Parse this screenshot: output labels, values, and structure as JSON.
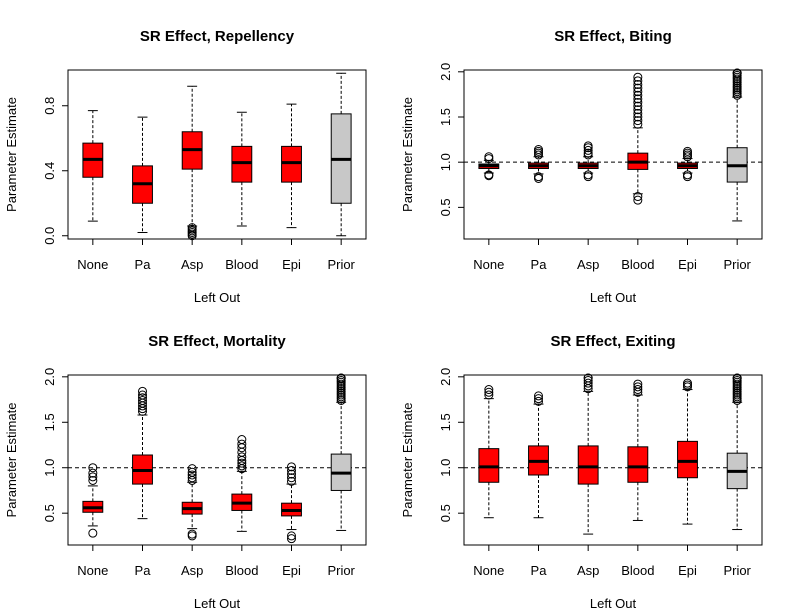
{
  "chart_data": [
    {
      "type": "boxplot",
      "title": "SR Effect, Repellency",
      "xlabel": "Left Out",
      "ylabel": "Parameter Estimate",
      "categories": [
        "None",
        "Pa",
        "Asp",
        "Blood",
        "Epi",
        "Prior"
      ],
      "yticks": [
        "0.0",
        "0.4",
        "0.8"
      ],
      "ylim": [
        -0.02,
        1.02
      ],
      "reference_line": null,
      "boxes": [
        {
          "min": 0.09,
          "q1": 0.36,
          "median": 0.47,
          "q3": 0.57,
          "max": 0.77,
          "outliers": [],
          "color": "#ff0000"
        },
        {
          "min": 0.02,
          "q1": 0.2,
          "median": 0.32,
          "q3": 0.43,
          "max": 0.73,
          "outliers": [],
          "color": "#ff0000"
        },
        {
          "min": 0.06,
          "q1": 0.41,
          "median": 0.53,
          "q3": 0.64,
          "max": 0.92,
          "outliers": [
            0.0,
            0.01,
            0.02,
            0.03,
            0.04,
            0.05
          ],
          "color": "#ff0000"
        },
        {
          "min": 0.06,
          "q1": 0.33,
          "median": 0.45,
          "q3": 0.55,
          "max": 0.76,
          "outliers": [],
          "color": "#ff0000"
        },
        {
          "min": 0.05,
          "q1": 0.33,
          "median": 0.45,
          "q3": 0.55,
          "max": 0.81,
          "outliers": [],
          "color": "#ff0000"
        },
        {
          "min": 0.0,
          "q1": 0.2,
          "median": 0.47,
          "q3": 0.75,
          "max": 1.0,
          "outliers": [],
          "color": "#c8c8c8"
        }
      ]
    },
    {
      "type": "boxplot",
      "title": "SR Effect, Biting",
      "xlabel": "Left Out",
      "ylabel": "Parameter Estimate",
      "categories": [
        "None",
        "Pa",
        "Asp",
        "Blood",
        "Epi",
        "Prior"
      ],
      "yticks": [
        "0.5",
        "1.0",
        "1.5",
        "2.0"
      ],
      "ylim": [
        0.15,
        2.02
      ],
      "reference_line": 1.0,
      "boxes": [
        {
          "min": 0.88,
          "q1": 0.93,
          "median": 0.96,
          "q3": 0.98,
          "max": 1.02,
          "outliers": [
            0.85,
            0.86,
            1.04,
            1.06
          ],
          "color": "#ff0000"
        },
        {
          "min": 0.87,
          "q1": 0.93,
          "median": 0.96,
          "q3": 0.99,
          "max": 1.06,
          "outliers": [
            0.82,
            0.84,
            1.08,
            1.1,
            1.12,
            1.14
          ],
          "color": "#ff0000"
        },
        {
          "min": 0.88,
          "q1": 0.93,
          "median": 0.96,
          "q3": 0.99,
          "max": 1.06,
          "outliers": [
            0.84,
            0.86,
            1.08,
            1.1,
            1.13,
            1.16,
            1.18
          ],
          "color": "#ff0000"
        },
        {
          "min": 0.65,
          "q1": 0.92,
          "median": 1.0,
          "q3": 1.1,
          "max": 1.38,
          "outliers": [
            0.58,
            0.62,
            1.42,
            1.46,
            1.5,
            1.54,
            1.58,
            1.62,
            1.66,
            1.7,
            1.74,
            1.78,
            1.82,
            1.86,
            1.9,
            1.94
          ],
          "color": "#ff0000"
        },
        {
          "min": 0.88,
          "q1": 0.93,
          "median": 0.96,
          "q3": 0.99,
          "max": 1.04,
          "outliers": [
            0.84,
            0.86,
            1.06,
            1.08,
            1.1,
            1.12
          ],
          "color": "#ff0000"
        },
        {
          "min": 0.35,
          "q1": 0.78,
          "median": 0.96,
          "q3": 1.16,
          "max": 1.72,
          "outliers": [
            1.74,
            1.76,
            1.78,
            1.8,
            1.82,
            1.84,
            1.86,
            1.88,
            1.9,
            1.92,
            1.94,
            1.96,
            1.98,
            2.0,
            2.02
          ],
          "color": "#c8c8c8"
        }
      ]
    },
    {
      "type": "boxplot",
      "title": "SR Effect, Mortality",
      "xlabel": "Left Out",
      "ylabel": "Parameter Estimate",
      "categories": [
        "None",
        "Pa",
        "Asp",
        "Blood",
        "Epi",
        "Prior"
      ],
      "yticks": [
        "0.5",
        "1.0",
        "1.5",
        "2.0"
      ],
      "ylim": [
        0.15,
        2.02
      ],
      "reference_line": 1.0,
      "boxes": [
        {
          "min": 0.36,
          "q1": 0.51,
          "median": 0.56,
          "q3": 0.63,
          "max": 0.8,
          "outliers": [
            0.28,
            0.86,
            0.9,
            0.94,
            1.0
          ],
          "color": "#ff0000"
        },
        {
          "min": 0.44,
          "q1": 0.82,
          "median": 0.97,
          "q3": 1.14,
          "max": 1.58,
          "outliers": [
            1.62,
            1.65,
            1.68,
            1.71,
            1.74,
            1.77,
            1.8,
            1.84
          ],
          "color": "#ff0000"
        },
        {
          "min": 0.33,
          "q1": 0.49,
          "median": 0.55,
          "q3": 0.62,
          "max": 0.84,
          "outliers": [
            0.25,
            0.27,
            0.86,
            0.89,
            0.92,
            0.95,
            0.99
          ],
          "color": "#ff0000"
        },
        {
          "min": 0.3,
          "q1": 0.53,
          "median": 0.61,
          "q3": 0.71,
          "max": 0.96,
          "outliers": [
            0.99,
            1.02,
            1.05,
            1.08,
            1.12,
            1.17,
            1.22,
            1.26,
            1.31
          ],
          "color": "#ff0000"
        },
        {
          "min": 0.32,
          "q1": 0.47,
          "median": 0.53,
          "q3": 0.61,
          "max": 0.82,
          "outliers": [
            0.22,
            0.25,
            0.85,
            0.89,
            0.93,
            0.97,
            1.01
          ],
          "color": "#ff0000"
        },
        {
          "min": 0.31,
          "q1": 0.75,
          "median": 0.94,
          "q3": 1.15,
          "max": 1.72,
          "outliers": [
            1.74,
            1.76,
            1.78,
            1.8,
            1.82,
            1.84,
            1.86,
            1.88,
            1.9,
            1.92,
            1.94,
            1.96,
            1.98,
            2.0,
            2.02
          ],
          "color": "#c8c8c8"
        }
      ]
    },
    {
      "type": "boxplot",
      "title": "SR Effect, Exiting",
      "xlabel": "Left Out",
      "ylabel": "Parameter Estimate",
      "categories": [
        "None",
        "Pa",
        "Asp",
        "Blood",
        "Epi",
        "Prior"
      ],
      "yticks": [
        "0.5",
        "1.0",
        "1.5",
        "2.0"
      ],
      "ylim": [
        0.15,
        2.02
      ],
      "reference_line": 1.0,
      "boxes": [
        {
          "min": 0.45,
          "q1": 0.84,
          "median": 1.01,
          "q3": 1.21,
          "max": 1.76,
          "outliers": [
            1.8,
            1.83,
            1.86
          ],
          "color": "#ff0000"
        },
        {
          "min": 0.45,
          "q1": 0.92,
          "median": 1.07,
          "q3": 1.24,
          "max": 1.7,
          "outliers": [
            1.73,
            1.76,
            1.79
          ],
          "color": "#ff0000"
        },
        {
          "min": 0.27,
          "q1": 0.82,
          "median": 1.01,
          "q3": 1.24,
          "max": 1.84,
          "outliers": [
            1.87,
            1.9,
            1.93,
            1.96,
            1.99,
            2.02
          ],
          "color": "#ff0000"
        },
        {
          "min": 0.42,
          "q1": 0.84,
          "median": 1.01,
          "q3": 1.23,
          "max": 1.8,
          "outliers": [
            1.83,
            1.86,
            1.89,
            1.92
          ],
          "color": "#ff0000"
        },
        {
          "min": 0.38,
          "q1": 0.89,
          "median": 1.07,
          "q3": 1.29,
          "max": 1.86,
          "outliers": [
            1.89,
            1.91,
            1.93
          ],
          "color": "#ff0000"
        },
        {
          "min": 0.32,
          "q1": 0.77,
          "median": 0.96,
          "q3": 1.16,
          "max": 1.72,
          "outliers": [
            1.74,
            1.76,
            1.78,
            1.8,
            1.82,
            1.84,
            1.86,
            1.88,
            1.9,
            1.92,
            1.94,
            1.96,
            1.98,
            2.0,
            2.02
          ],
          "color": "#c8c8c8"
        }
      ]
    }
  ]
}
